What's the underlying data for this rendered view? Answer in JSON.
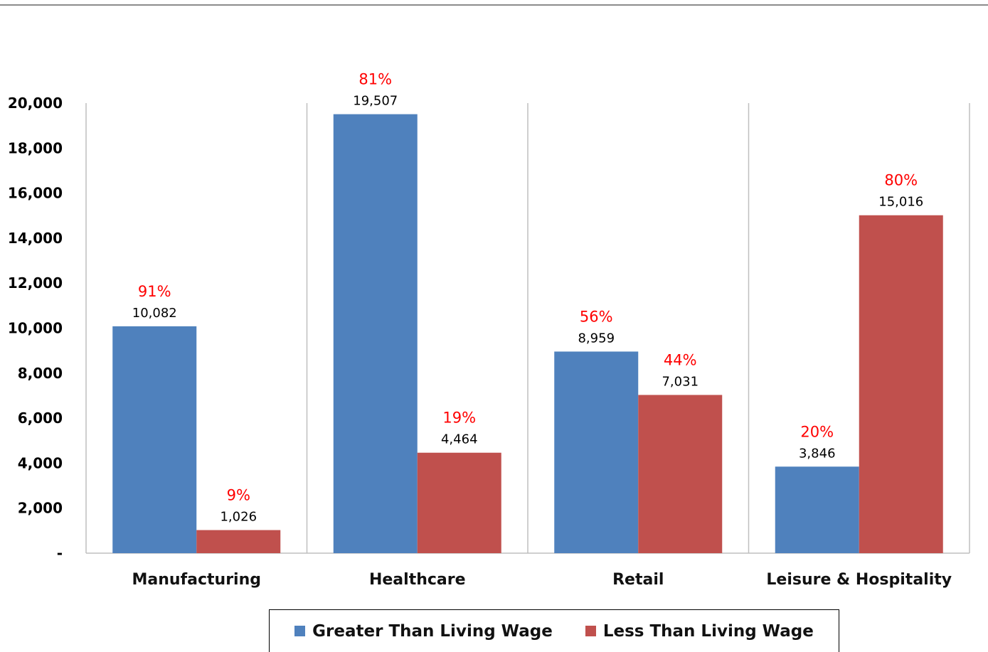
{
  "chart_data": {
    "type": "bar",
    "categories": [
      "Manufacturing",
      "Healthcare",
      "Retail",
      "Leisure & Hospitality"
    ],
    "series": [
      {
        "name": "Greater Than Living Wage",
        "values": [
          10082,
          19507,
          8959,
          3846
        ],
        "value_labels": [
          "10,082",
          "19,507",
          "8,959",
          "3,846"
        ],
        "percent_labels": [
          "91%",
          "81%",
          "56%",
          "20%"
        ],
        "color": "#4f81bd"
      },
      {
        "name": "Less Than Living Wage",
        "values": [
          1026,
          4464,
          7031,
          15016
        ],
        "value_labels": [
          "1,026",
          "4,464",
          "7,031",
          "15,016"
        ],
        "percent_labels": [
          "9%",
          "19%",
          "44%",
          "80%"
        ],
        "color": "#c0504d"
      }
    ],
    "ylim": [
      0,
      20000
    ],
    "yticks": [
      0,
      2000,
      4000,
      6000,
      8000,
      10000,
      12000,
      14000,
      16000,
      18000,
      20000
    ],
    "ytick_labels": [
      "-",
      "2,000",
      "4,000",
      "6,000",
      "8,000",
      "10,000",
      "12,000",
      "14,000",
      "16,000",
      "18,000",
      "20,000"
    ],
    "percent_color": "#ff0000",
    "legend_position": "bottom",
    "grid": false,
    "category_separators": true
  }
}
